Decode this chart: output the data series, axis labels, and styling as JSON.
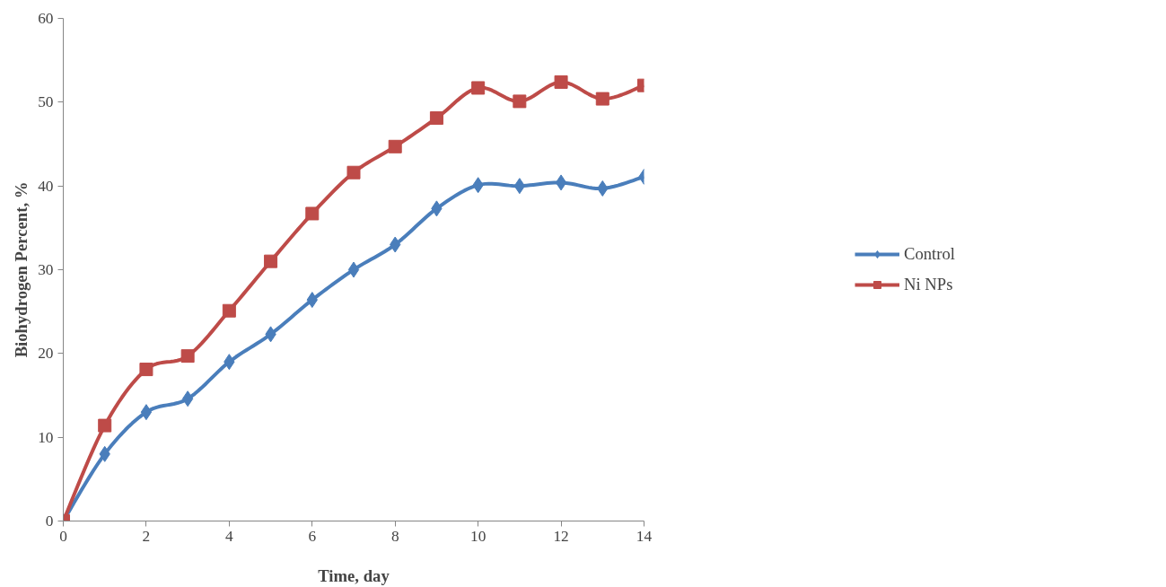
{
  "chart_data": {
    "type": "line",
    "xlabel": "Time, day",
    "ylabel": "Biohydrogen Percent, %",
    "x": [
      0,
      1,
      2,
      3,
      4,
      5,
      6,
      7,
      8,
      9,
      10,
      11,
      12,
      13,
      14
    ],
    "series": [
      {
        "name": "Control",
        "color": "#4a7ebb",
        "marker": "diamond",
        "values": [
          0,
          8.0,
          13.0,
          14.6,
          19.0,
          22.3,
          26.4,
          30.0,
          33.0,
          37.3,
          40.1,
          40.0,
          40.4,
          39.7,
          41.1
        ]
      },
      {
        "name": "Ni NPs",
        "color": "#be4b48",
        "marker": "square",
        "values": [
          0,
          11.4,
          18.1,
          19.7,
          25.1,
          31.0,
          36.7,
          41.6,
          44.7,
          48.1,
          51.7,
          50.1,
          52.4,
          50.4,
          52.0
        ]
      }
    ],
    "xlim": [
      0,
      14
    ],
    "ylim": [
      0,
      60
    ],
    "xticks": [
      0,
      2,
      4,
      6,
      8,
      10,
      12,
      14
    ],
    "yticks": [
      0,
      10,
      20,
      30,
      40,
      50,
      60
    ],
    "grid": false,
    "legend": "right",
    "line_style": "solid"
  }
}
